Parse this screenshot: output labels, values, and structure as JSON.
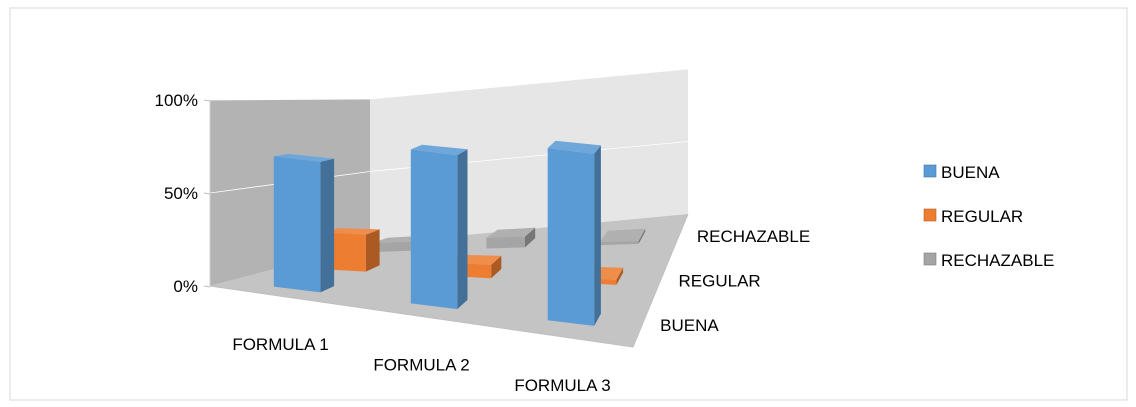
{
  "chart_data": {
    "type": "bar",
    "subtype": "3d-column",
    "categories": [
      "FORMULA 1",
      "FORMULA 2",
      "FORMULA 3"
    ],
    "series": [
      {
        "name": "BUENA",
        "color": "#5b9bd5",
        "values": [
          0.72,
          0.85,
          0.95
        ]
      },
      {
        "name": "REGULAR",
        "color": "#ed7d31",
        "values": [
          0.22,
          0.08,
          0.03
        ]
      },
      {
        "name": "RECHAZABLE",
        "color": "#a5a5a5",
        "values": [
          0.06,
          0.07,
          0.02
        ]
      }
    ],
    "y_ticks": [
      "0%",
      "50%",
      "100%"
    ],
    "depth_labels": [
      "BUENA",
      "REGULAR",
      "RECHAZABLE"
    ],
    "ylim": [
      0,
      1
    ],
    "legend": {
      "position": "right",
      "entries": [
        "BUENA",
        "REGULAR",
        "RECHAZABLE"
      ]
    },
    "grid": true
  }
}
